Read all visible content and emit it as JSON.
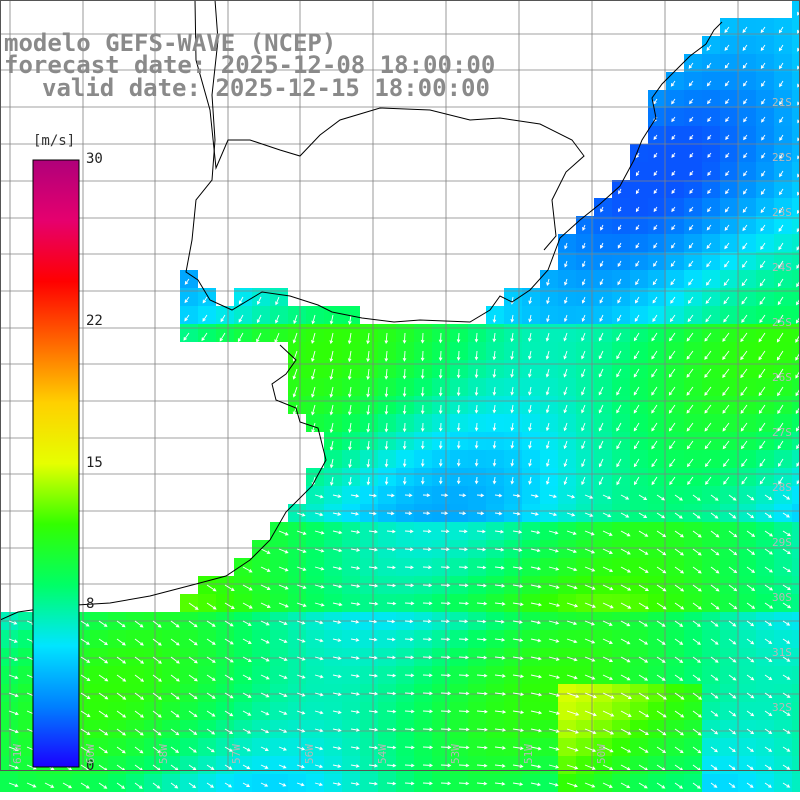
{
  "header": {
    "line1": "modelo GEFS-WAVE (NCEP)",
    "line2": "forecast date: 2025-12-08 18:00:00",
    "line3": "valid date: 2025-12-15 18:00:00"
  },
  "colorbar": {
    "unit": "[m/s]",
    "ticks": [
      {
        "label": "30",
        "value": 30
      },
      {
        "label": "22",
        "value": 22
      },
      {
        "label": "15",
        "value": 15
      },
      {
        "label": "8",
        "value": 8
      },
      {
        "label": "0",
        "value": 0
      }
    ],
    "colors": [
      "#1a00ff",
      "#0080ff",
      "#00e5ff",
      "#00ff66",
      "#33ff00",
      "#e6ff00",
      "#ffd000",
      "#ff6600",
      "#ff0000",
      "#e6006e",
      "#b0007a"
    ]
  },
  "map": {
    "lon_labels": [
      "61W",
      "60W",
      "58W",
      "57W",
      "56W",
      "54W",
      "53W",
      "51W",
      "50W"
    ],
    "lat_labels": [
      "21S",
      "22S",
      "23S",
      "24S",
      "25S",
      "26S",
      "27S",
      "28S",
      "29S",
      "30S",
      "31S",
      "32S"
    ],
    "coast_color": "#000000",
    "grid_color": "#808080"
  }
}
